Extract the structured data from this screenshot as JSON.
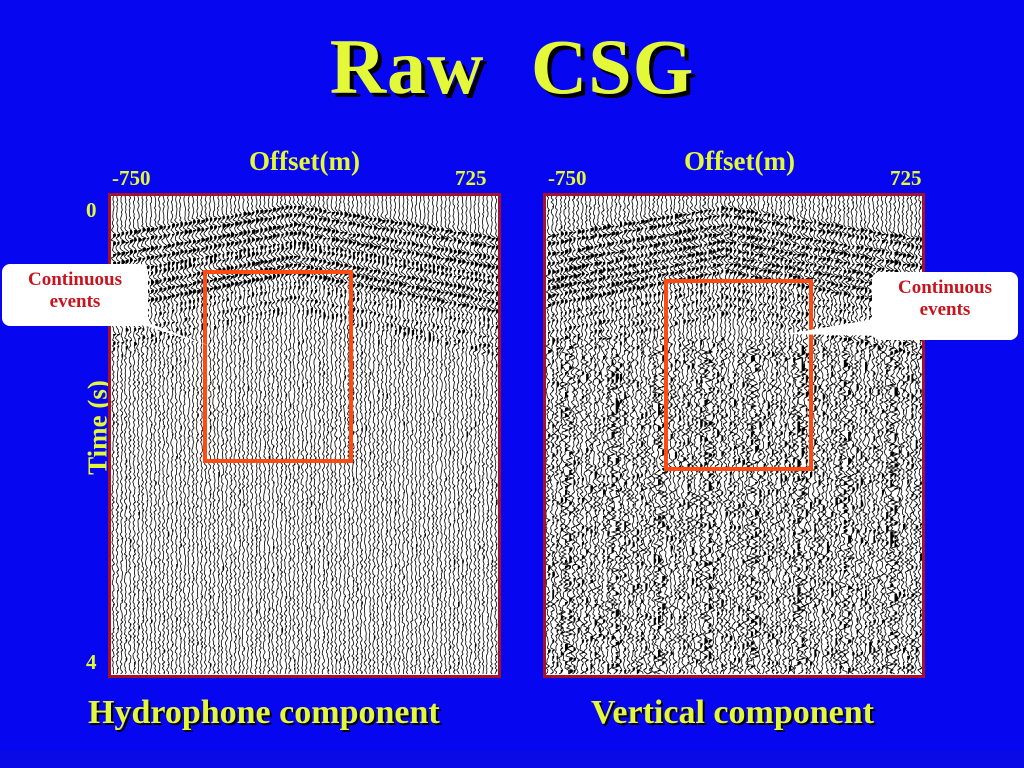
{
  "title": "Raw  CSG",
  "axis": {
    "offset_title": "Offset(m)",
    "offset_min": "-750",
    "offset_max": "725",
    "time_title": "Time (s)",
    "time_start": "0",
    "time_end": "4"
  },
  "panels": {
    "left_label": "Hydrophone component",
    "right_label": "Vertical component"
  },
  "callouts": {
    "left_line1": "Continuous",
    "left_line2": "events",
    "right_line1": "Continuous",
    "right_line2": "events"
  },
  "colors": {
    "background": "#0606f0",
    "text": "#e4f83a",
    "panel_border": "#a5102a",
    "highlight_box": "#ff4a12",
    "callout_text": "#c8141e"
  }
}
